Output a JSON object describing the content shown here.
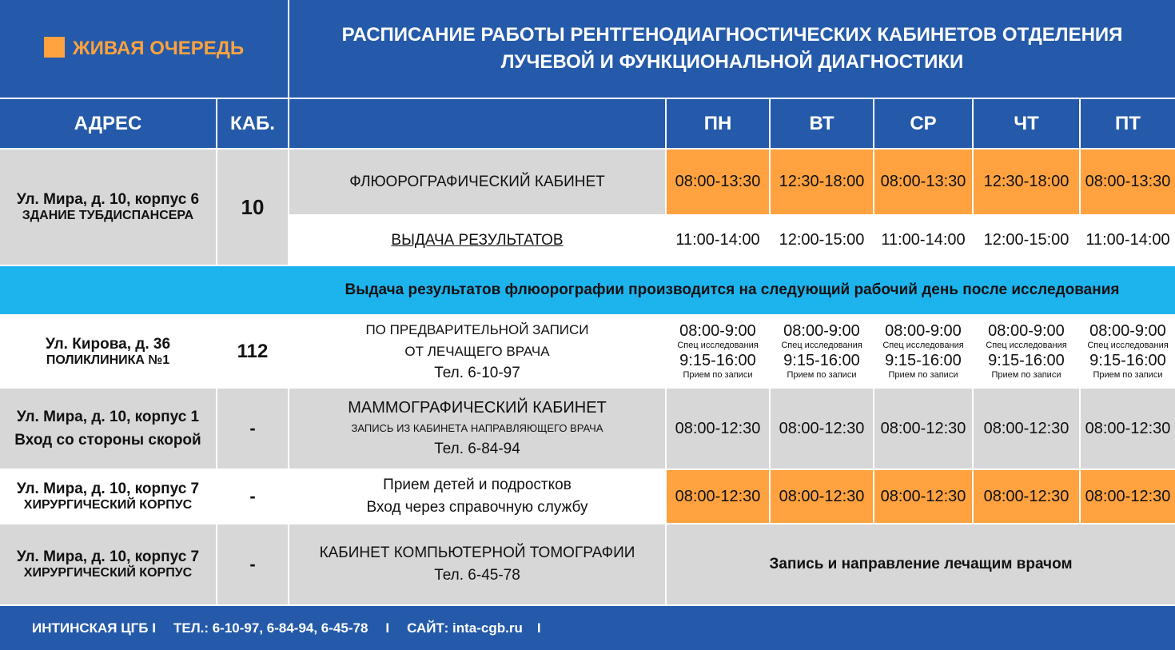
{
  "header": {
    "queue_label": "ЖИВАЯ ОЧЕРЕДЬ",
    "title": "РАСПИСАНИЕ РАБОТЫ РЕНТГЕНОДИАГНОСТИЧЕСКИХ КАБИНЕТОВ ОТДЕЛЕНИЯ ЛУЧЕВОЙ И ФУНКЦИОНАЛЬНОЙ ДИАГНОСТИКИ",
    "accent": "#ffa23f"
  },
  "columns": {
    "address": "АДРЕС",
    "room": "КАБ.",
    "days": [
      "ПН",
      "ВТ",
      "СР",
      "ЧТ",
      "ПТ"
    ]
  },
  "rows": {
    "fluoro": {
      "address1": "Ул. Мира, д. 10, корпус 6",
      "address2": "ЗДАНИЕ ТУБДИСПАНСЕРА",
      "room": "10",
      "name": "ФЛЮОРОГРАФИЧЕСКИЙ КАБИНЕТ",
      "times": [
        "08:00-13:30",
        "12:30-18:00",
        "08:00-13:30",
        "12:30-18:00",
        "08:00-13:30"
      ],
      "results_label": "ВЫДАЧА РЕЗУЛЬТАТОВ",
      "results_times": [
        "11:00-14:00",
        "12:00-15:00",
        "11:00-14:00",
        "12:00-15:00",
        "11:00-14:00"
      ]
    },
    "notice": "Выдача результатов флюорографии производится на следующий рабочий день после исследования",
    "kirova": {
      "address1": "Ул. Кирова, д. 36",
      "address2": "ПОЛИКЛИНИКА №1",
      "room": "112",
      "line1": "ПО ПРЕДВАРИТЕЛЬНОЙ ЗАПИСИ",
      "line2": "ОТ ЛЕЧАЩЕГО ВРАЧА",
      "phone": "Тел. 6-10-97",
      "time1": "08:00-9:00",
      "note1": "Спец исследования",
      "time2": "9:15-16:00",
      "note2": "Прием по записи"
    },
    "mammo": {
      "address1": "Ул. Мира, д. 10, корпус 1",
      "address2": "Вход со стороны скорой",
      "room": "-",
      "name": "МАММОГРАФИЧЕСКИЙ КАБИНЕТ",
      "sub": "ЗАПИСЬ ИЗ КАБИНЕТА НАПРАВЛЯЮЩЕГО ВРАЧА",
      "phone": "Тел. 6-84-94",
      "times": [
        "08:00-12:30",
        "08:00-12:30",
        "08:00-12:30",
        "08:00-12:30",
        "08:00-12:30"
      ]
    },
    "kids": {
      "address1": "Ул. Мира, д. 10, корпус 7",
      "address2": "ХИРУРГИЧЕСКИЙ КОРПУС",
      "room": "-",
      "line1": "Прием детей и подростков",
      "line2": "Вход через справочную службу",
      "times": [
        "08:00-12:30",
        "08:00-12:30",
        "08:00-12:30",
        "08:00-12:30",
        "08:00-12:30"
      ]
    },
    "ct": {
      "address1": "Ул. Мира, д. 10, корпус 7",
      "address2": "ХИРУРГИЧЕСКИЙ КОРПУС",
      "room": "-",
      "name": "КАБИНЕТ КОМПЬЮТЕРНОЙ ТОМОГРАФИИ",
      "phone": "Тел. 6-45-78",
      "schedule": "Запись и направление лечащим врачом"
    }
  },
  "footer": {
    "org": "ИНТИНСКАЯ ЦГБ I",
    "phones": "ТЕЛ.: 6-10-97, 6-84-94, 6-45-78",
    "sep": "I",
    "site": "САЙТ: inta-cgb.ru",
    "sep2": "I"
  }
}
